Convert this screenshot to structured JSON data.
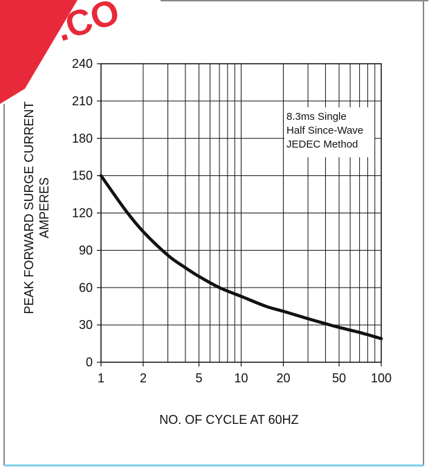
{
  "watermark": {
    "text": ".CO",
    "color": "#e8293a"
  },
  "chart_data": {
    "type": "line",
    "xscale": "log",
    "xlabel": "NO. OF CYCLE AT 60HZ",
    "ylabel_line1": "PEAK FORWARD SURGE CURRENT",
    "ylabel_line2": "AMPERES",
    "xlim": [
      1,
      100
    ],
    "ylim": [
      0,
      240
    ],
    "x_ticks": [
      1,
      2,
      5,
      10,
      20,
      50,
      100
    ],
    "x_minor_gridlines": [
      3,
      4,
      6,
      7,
      8,
      9,
      30,
      40,
      60,
      70,
      80,
      90
    ],
    "y_ticks": [
      0,
      30,
      60,
      90,
      120,
      150,
      180,
      210,
      240
    ],
    "grid": true,
    "annotation": [
      "8.3ms Single",
      "Half Since-Wave",
      "JEDEC Method"
    ],
    "series": [
      {
        "x": [
          1,
          1.5,
          2,
          3,
          4,
          5,
          7,
          10,
          15,
          20,
          30,
          40,
          50,
          70,
          100
        ],
        "values": [
          150,
          122,
          105,
          86,
          76,
          69,
          60,
          53,
          45,
          41,
          35,
          31,
          28,
          24,
          19
        ]
      }
    ],
    "colors": {
      "curve": "#111111",
      "grid": "#111111"
    }
  }
}
